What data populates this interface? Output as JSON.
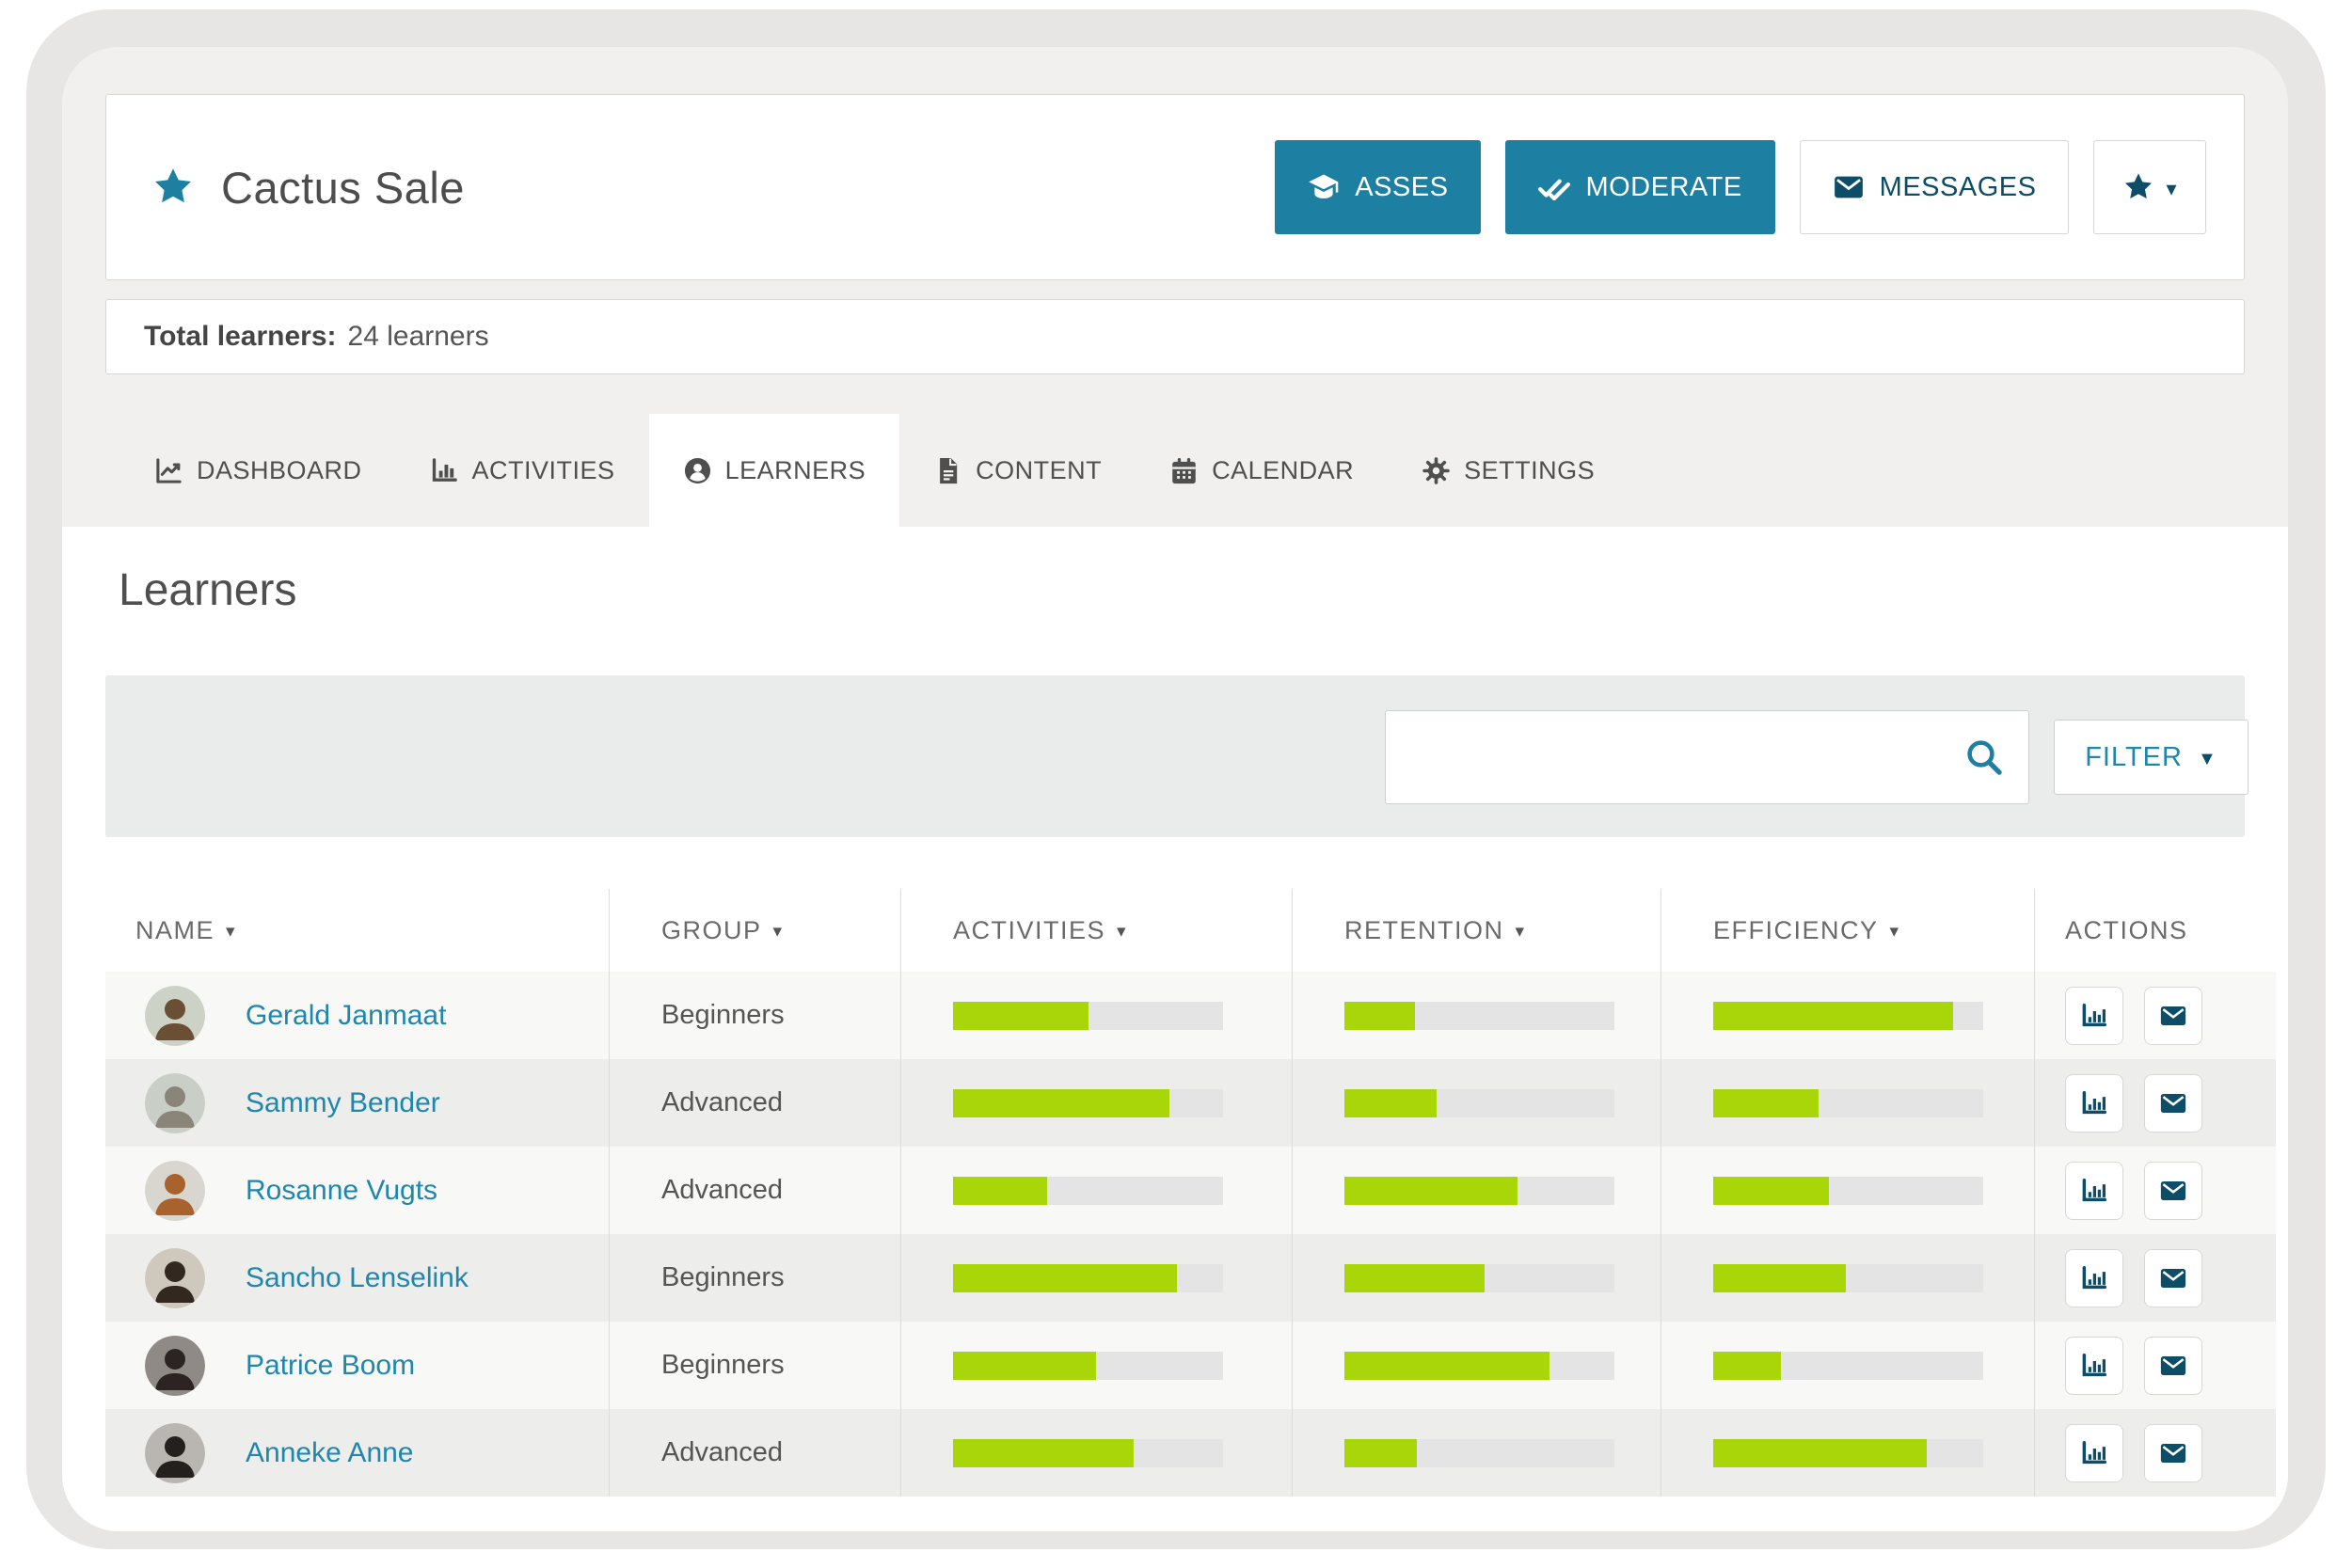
{
  "header": {
    "title": "Cactus Sale",
    "buttons": {
      "asses": "ASSES",
      "moderate": "MODERATE",
      "messages": "MESSAGES"
    }
  },
  "summary": {
    "label": "Total learners:",
    "value": "24 learners"
  },
  "tabs": [
    {
      "label": "DASHBOARD",
      "icon": "chart-line-icon",
      "active": false
    },
    {
      "label": "ACTIVITIES",
      "icon": "chart-bar-icon",
      "active": false
    },
    {
      "label": "LEARNERS",
      "icon": "user-circle-icon",
      "active": true
    },
    {
      "label": "CONTENT",
      "icon": "file-icon",
      "active": false
    },
    {
      "label": "CALENDAR",
      "icon": "calendar-icon",
      "active": false
    },
    {
      "label": "SETTINGS",
      "icon": "gear-icon",
      "active": false
    }
  ],
  "learners_section": {
    "heading": "Learners",
    "search_value": "",
    "filter_label": "FILTER"
  },
  "table": {
    "columns": [
      {
        "key": "name",
        "label": "NAME",
        "sortable": true
      },
      {
        "key": "group",
        "label": "GROUP",
        "sortable": true
      },
      {
        "key": "activities",
        "label": "ACTIVITIES",
        "sortable": true
      },
      {
        "key": "retention",
        "label": "RETENTION",
        "sortable": true
      },
      {
        "key": "efficiency",
        "label": "EFFICIENCY",
        "sortable": true
      },
      {
        "key": "actions",
        "label": "ACTIONS",
        "sortable": false
      }
    ],
    "rows": [
      {
        "name": "Gerald Janmaat",
        "group": "Beginners",
        "activities": 50,
        "retention": 26,
        "efficiency": 89,
        "avatar_bg": "#ccd2c6",
        "avatar_tone": "#6b4f35"
      },
      {
        "name": "Sammy Bender",
        "group": "Advanced",
        "activities": 80,
        "retention": 34,
        "efficiency": 39,
        "avatar_bg": "#c9cfc7",
        "avatar_tone": "#8a8578"
      },
      {
        "name": "Rosanne Vugts",
        "group": "Advanced",
        "activities": 35,
        "retention": 64,
        "efficiency": 43,
        "avatar_bg": "#d9d5cf",
        "avatar_tone": "#a8622e"
      },
      {
        "name": "Sancho Lenselink",
        "group": "Beginners",
        "activities": 83,
        "retention": 52,
        "efficiency": 49,
        "avatar_bg": "#cfc9bd",
        "avatar_tone": "#32281f"
      },
      {
        "name": "Patrice Boom",
        "group": "Beginners",
        "activities": 53,
        "retention": 76,
        "efficiency": 25,
        "avatar_bg": "#8f8a85",
        "avatar_tone": "#2b2422"
      },
      {
        "name": "Anneke Anne",
        "group": "Advanced",
        "activities": 67,
        "retention": 27,
        "efficiency": 79,
        "avatar_bg": "#b9b6b2",
        "avatar_tone": "#24201d"
      }
    ]
  },
  "icons": {
    "title_star": "star-icon",
    "asses": "graduation-cap-icon",
    "moderate": "double-check-icon",
    "messages": "envelope-icon",
    "favorite": "star-icon",
    "search": "search-icon",
    "row_stats": "bar-chart-icon",
    "row_message": "envelope-icon"
  },
  "colors": {
    "primary": "#1d7fa2",
    "primary_dark": "#0d4d67",
    "link": "#1f86ac",
    "bar_green": "#a8d608",
    "bar_track": "#e4e4e4",
    "frame_outer": "#e8e6e4",
    "frame_inner": "#f1f0ee"
  },
  "glyphs": {
    "caret_down": "▾",
    "caret_down_small": "▼"
  }
}
